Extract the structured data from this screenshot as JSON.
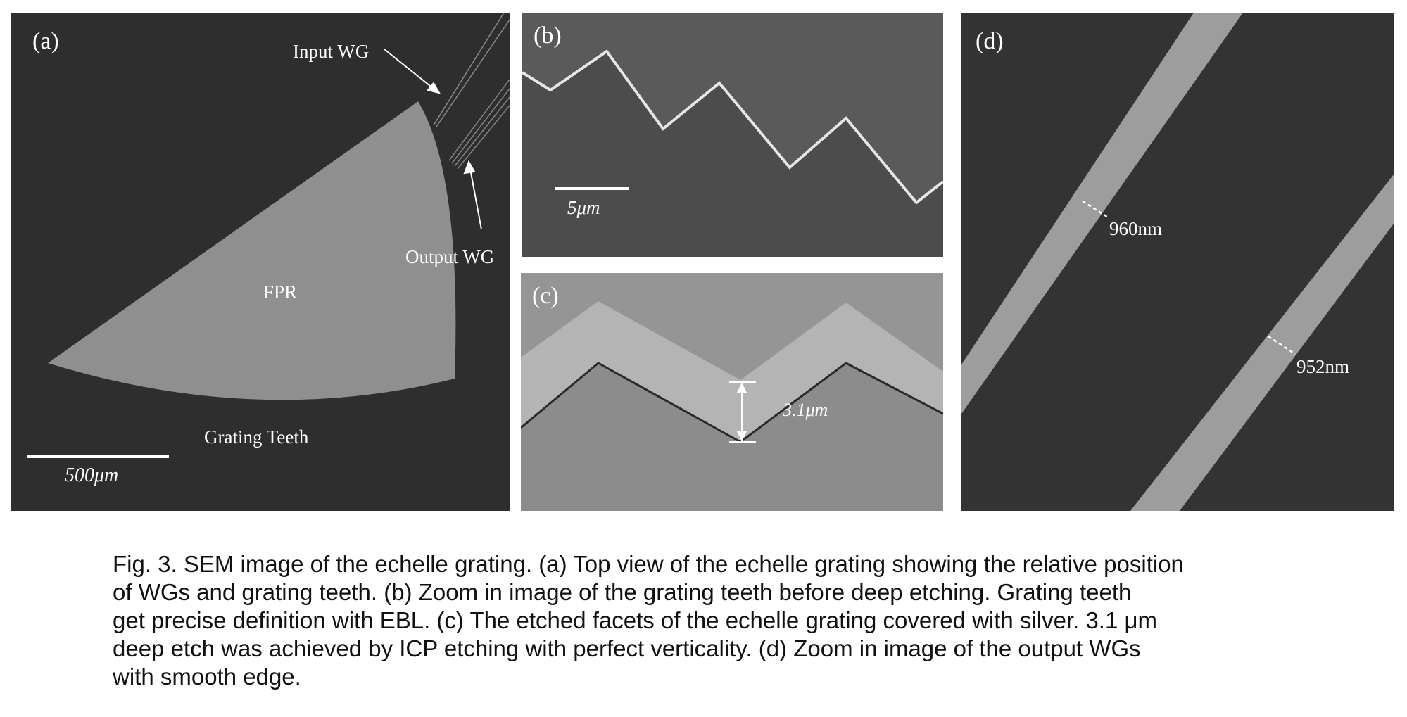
{
  "figure": {
    "panel_a": {
      "label": "(a)",
      "input_wg": "Input WG",
      "output_wg": "Output WG",
      "fpr": "FPR",
      "grating_teeth": "Grating Teeth",
      "scale_bar": "500μm"
    },
    "panel_b": {
      "label": "(b)",
      "scale_bar": "5μm"
    },
    "panel_c": {
      "label": "(c)",
      "depth": "3.1μm"
    },
    "panel_d": {
      "label": "(d)",
      "width_1": "960nm",
      "width_2": "952nm"
    }
  },
  "caption": {
    "lines": [
      "Fig. 3. SEM image of the echelle grating. (a) Top view of the echelle grating showing the relative position",
      "of WGs and grating teeth. (b) Zoom in image of the grating teeth before deep etching. Grating teeth",
      "get precise definition with EBL. (c) The etched facets of the echelle grating covered with silver. 3.1 μm",
      "deep etch was achieved by ICP etching with perfect verticality. (d) Zoom in image of the output WGs",
      "with smooth edge."
    ]
  }
}
